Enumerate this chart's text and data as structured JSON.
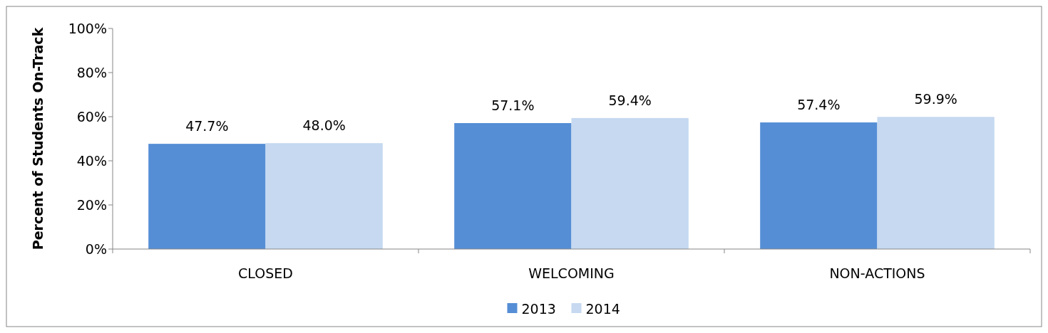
{
  "chart_data": {
    "type": "bar",
    "ylabel": "Percent of Students On-Track",
    "categories": [
      "CLOSED",
      "WELCOMING",
      "NON-ACTIONS"
    ],
    "series": [
      {
        "name": "2013",
        "color": "#558ed5",
        "values": [
          47.7,
          57.1,
          57.4
        ],
        "value_labels": [
          "47.7%",
          "57.1%",
          "57.4%"
        ]
      },
      {
        "name": "2014",
        "color": "#c6d9f1",
        "values": [
          48.0,
          59.4,
          59.9
        ],
        "value_labels": [
          "48.0%",
          "59.4%",
          "59.9%"
        ]
      }
    ],
    "ylim": [
      0,
      100
    ],
    "yticks": [
      {
        "value": 0,
        "label": "0%"
      },
      {
        "value": 20,
        "label": "20%"
      },
      {
        "value": 40,
        "label": "40%"
      },
      {
        "value": 60,
        "label": "60%"
      },
      {
        "value": 80,
        "label": "80%"
      },
      {
        "value": 100,
        "label": "100%"
      }
    ],
    "grid": false,
    "legend": "bottom"
  }
}
